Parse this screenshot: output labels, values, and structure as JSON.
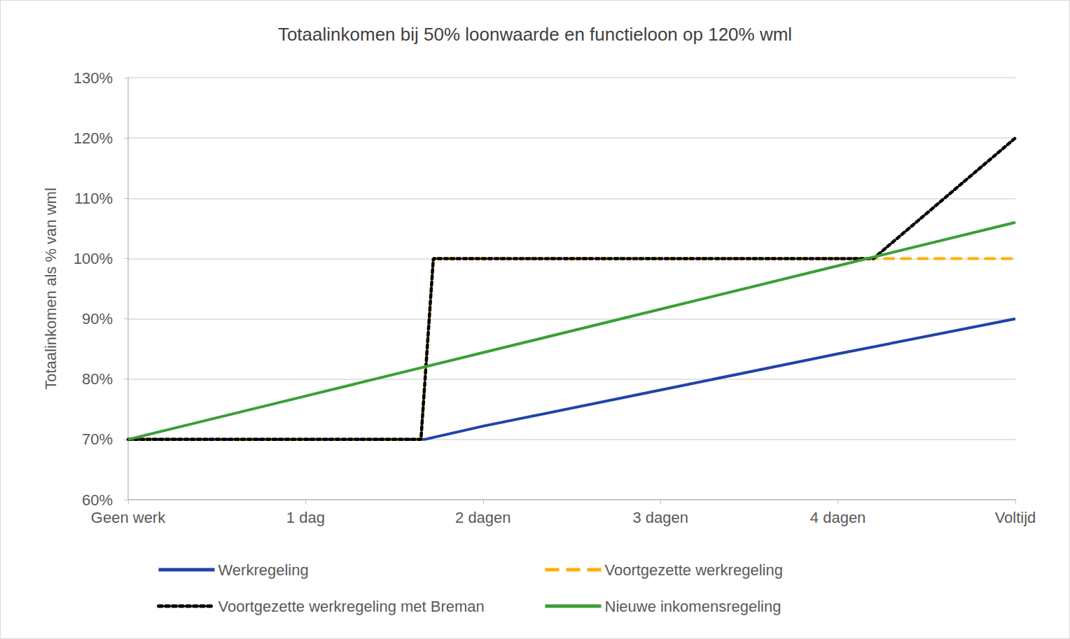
{
  "chart_data": {
    "type": "line",
    "title": "Totaalinkomen bij 50% loonwaarde en functieloon op 120% wml",
    "y_label": "Totaalinkomen als % van wml",
    "xlim": [
      0,
      5
    ],
    "xticks": [
      {
        "value": 0,
        "label": "Geen werk"
      },
      {
        "value": 1,
        "label": "1 dag"
      },
      {
        "value": 2,
        "label": "2 dagen"
      },
      {
        "value": 3,
        "label": "3 dagen"
      },
      {
        "value": 4,
        "label": "4 dagen"
      },
      {
        "value": 5,
        "label": "Voltijd"
      }
    ],
    "ylim": [
      60,
      130
    ],
    "yticks": [
      {
        "value": 60,
        "label": "60%"
      },
      {
        "value": 70,
        "label": "70%"
      },
      {
        "value": 80,
        "label": "80%"
      },
      {
        "value": 90,
        "label": "90%"
      },
      {
        "value": 100,
        "label": "100%"
      },
      {
        "value": 110,
        "label": "110%"
      },
      {
        "value": 120,
        "label": "120%"
      },
      {
        "value": 130,
        "label": "130%"
      }
    ],
    "grid": true,
    "legend": "bottom",
    "series": [
      {
        "name": "Werkregeling",
        "color": "#1f44a8",
        "line_style": "solid",
        "x": [
          0,
          1.67,
          2,
          3,
          4,
          5
        ],
        "values": [
          70,
          70,
          72.2,
          78.2,
          84.2,
          90
        ]
      },
      {
        "name": "Voortgezette werkregeling",
        "color": "#ffb000",
        "line_style": "dashed",
        "x": [
          0,
          1.65,
          1.72,
          5
        ],
        "values": [
          70,
          70,
          100,
          100
        ]
      },
      {
        "name": "Voortgezette werkregeling met Breman",
        "color": "#000000",
        "line_style": "dotted",
        "x": [
          0,
          1.65,
          1.72,
          4.2,
          5
        ],
        "values": [
          70,
          70,
          100,
          100,
          120
        ]
      },
      {
        "name": "Nieuwe inkomensregeling",
        "color": "#3a9f35",
        "line_style": "solid",
        "x": [
          0,
          1,
          2,
          3,
          4,
          5
        ],
        "values": [
          70,
          77.2,
          84.4,
          91.6,
          98.8,
          106
        ]
      }
    ]
  }
}
